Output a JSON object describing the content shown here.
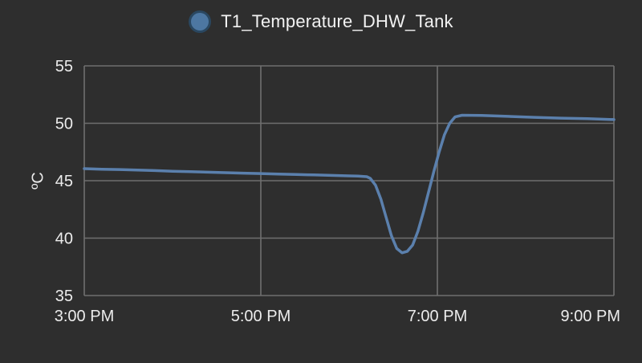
{
  "legend": {
    "label": "T1_Temperature_DHW_Tank",
    "marker_fill": "#4d77a2",
    "marker_border": "#2a4760"
  },
  "chart_data": {
    "type": "line",
    "title": "T1_Temperature_DHW_Tank",
    "xlabel": "",
    "ylabel": "ºC",
    "xlim": [
      15,
      21
    ],
    "ylim": [
      35,
      55
    ],
    "grid": true,
    "legend_position": "top-center",
    "x_ticks": [
      {
        "value": 15,
        "label": "3:00 PM"
      },
      {
        "value": 17,
        "label": "5:00 PM"
      },
      {
        "value": 19,
        "label": "7:00 PM"
      },
      {
        "value": 21,
        "label": "9:00 PM"
      }
    ],
    "y_ticks": [
      35,
      40,
      45,
      50,
      55
    ],
    "colors": {
      "background": "#2e2e2e",
      "grid": "#6f6f6f",
      "text": "#ececec",
      "line": "#5b80ad"
    },
    "series": [
      {
        "name": "T1_Temperature_DHW_Tank",
        "x": [
          15.0,
          15.2,
          15.4,
          15.6,
          15.8,
          16.0,
          16.2,
          16.4,
          16.6,
          16.8,
          17.0,
          17.2,
          17.4,
          17.6,
          17.8,
          18.0,
          18.1,
          18.2,
          18.24,
          18.3,
          18.36,
          18.42,
          18.48,
          18.54,
          18.6,
          18.66,
          18.72,
          18.78,
          18.84,
          18.9,
          18.96,
          19.02,
          19.08,
          19.14,
          19.2,
          19.28,
          19.5,
          19.8,
          20.1,
          20.4,
          20.7,
          21.0
        ],
        "y": [
          46.05,
          46.0,
          45.97,
          45.92,
          45.88,
          45.82,
          45.78,
          45.74,
          45.7,
          45.66,
          45.62,
          45.58,
          45.54,
          45.5,
          45.46,
          45.42,
          45.4,
          45.35,
          45.2,
          44.6,
          43.4,
          41.8,
          40.2,
          39.1,
          38.72,
          38.85,
          39.4,
          40.6,
          42.2,
          44.0,
          45.8,
          47.5,
          49.0,
          50.0,
          50.55,
          50.7,
          50.68,
          50.6,
          50.52,
          50.45,
          50.4,
          50.32
        ]
      }
    ]
  }
}
